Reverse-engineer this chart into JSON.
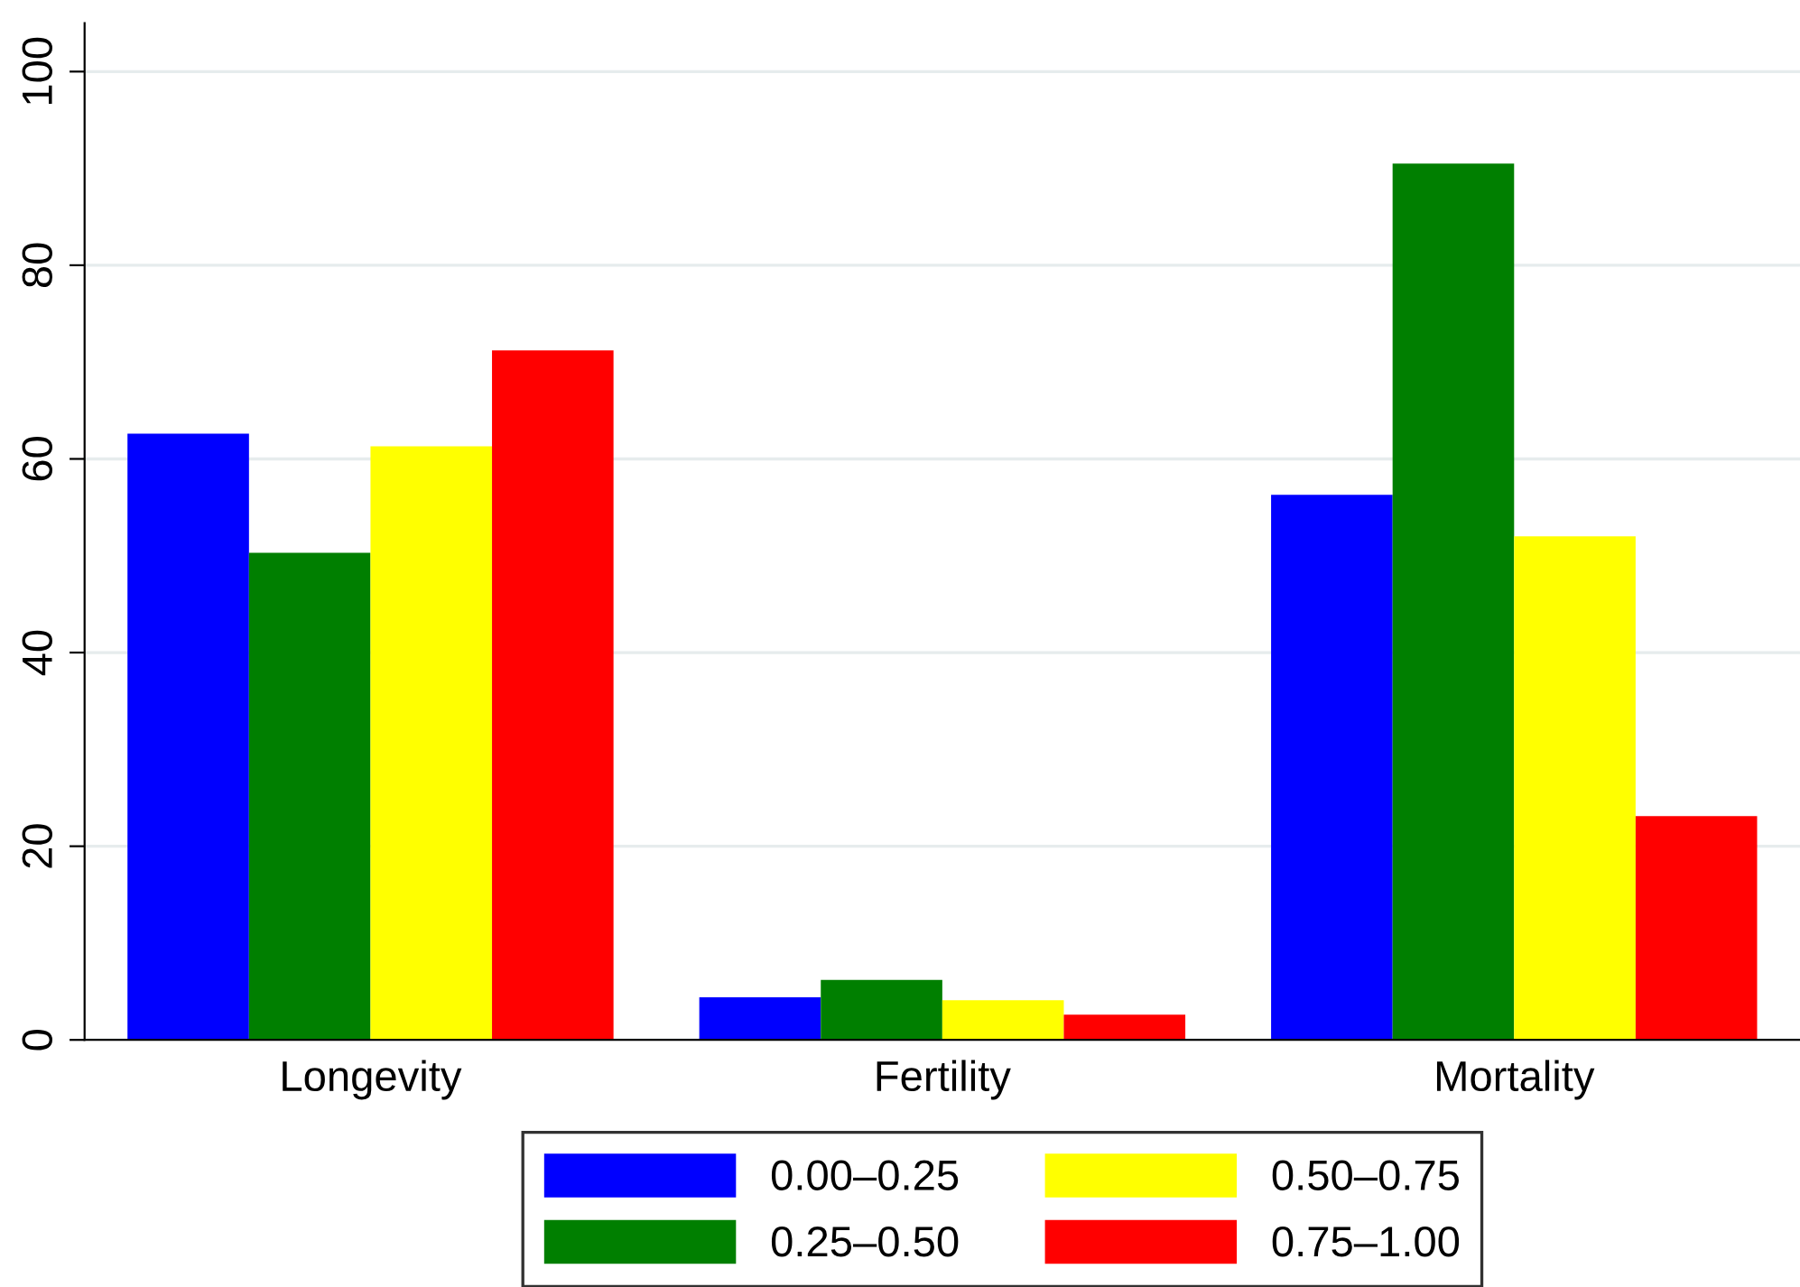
{
  "chart_data": {
    "type": "bar",
    "categories": [
      "Longevity",
      "Fertility",
      "Mortality"
    ],
    "series": [
      {
        "name": "0.00–0.25",
        "color": "#0000ff",
        "values": [
          62.6,
          4.4,
          56.3
        ]
      },
      {
        "name": "0.25–0.50",
        "color": "#007f00",
        "values": [
          50.3,
          6.2,
          90.5
        ]
      },
      {
        "name": "0.50–0.75",
        "color": "#ffff00",
        "values": [
          61.3,
          4.1,
          52.0
        ]
      },
      {
        "name": "0.75–1.00",
        "color": "#ff0000",
        "values": [
          71.2,
          2.6,
          23.1
        ]
      }
    ],
    "ylim": [
      0,
      105
    ],
    "yticks": [
      0,
      20,
      40,
      60,
      80,
      100
    ],
    "grid": "y",
    "legend": "bottom"
  }
}
